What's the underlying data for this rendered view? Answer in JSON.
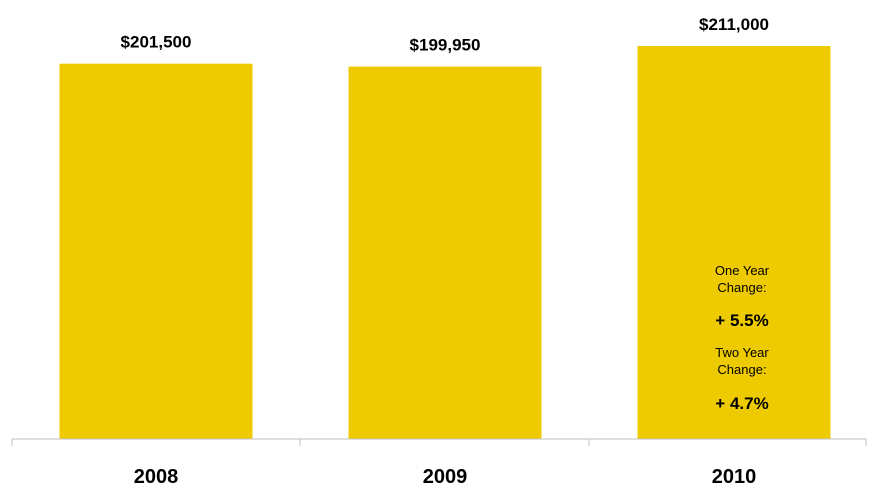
{
  "chart_data": {
    "type": "bar",
    "categories": [
      "2008",
      "2009",
      "2010"
    ],
    "values": [
      201500,
      199950,
      211000
    ],
    "value_labels": [
      "$201,500",
      "$199,950",
      "$211,000"
    ],
    "title": "",
    "xlabel": "",
    "ylabel": "",
    "grid": false,
    "bar_color": "#EECB00",
    "annotations": {
      "one_year_label_line1": "One Year",
      "one_year_label_line2": "Change:",
      "one_year_value": "+ 5.5%",
      "two_year_label_line1": "Two Year",
      "two_year_label_line2": "Change:",
      "two_year_value": "+ 4.7%"
    }
  }
}
